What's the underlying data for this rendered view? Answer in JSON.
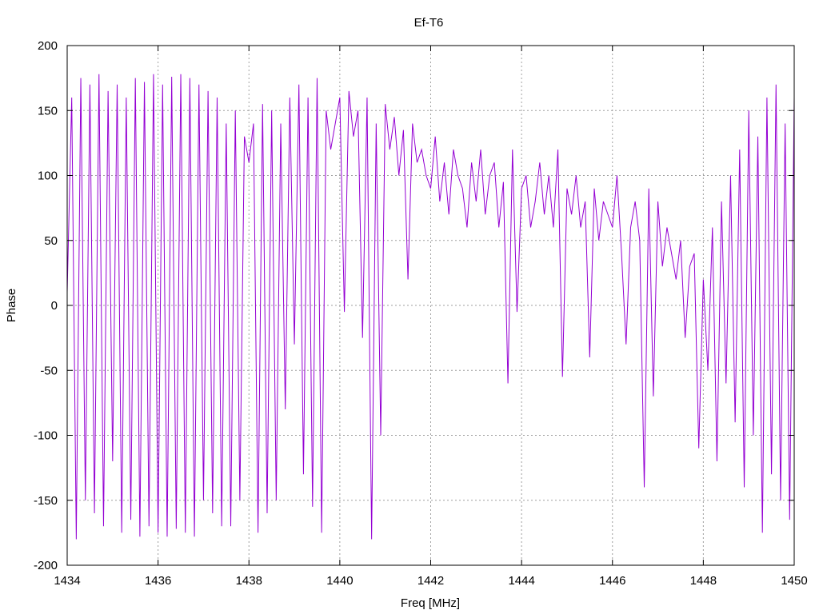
{
  "chart_data": {
    "type": "line",
    "title": "Ef-T6",
    "xlabel": "Freq [MHz]",
    "ylabel": "Phase",
    "xlim": [
      1434,
      1450
    ],
    "ylim": [
      -200,
      200
    ],
    "x_ticks": [
      1434,
      1436,
      1438,
      1440,
      1442,
      1444,
      1446,
      1448,
      1450
    ],
    "y_ticks": [
      -200,
      -150,
      -100,
      -50,
      0,
      50,
      100,
      150,
      200
    ],
    "grid": true,
    "legend": "none",
    "series": [
      {
        "color": "#9400d3",
        "x": [
          1434.0,
          1434.1,
          1434.2,
          1434.3,
          1434.4,
          1434.5,
          1434.6,
          1434.7,
          1434.8,
          1434.9,
          1435.0,
          1435.1,
          1435.2,
          1435.3,
          1435.4,
          1435.5,
          1435.6,
          1435.7,
          1435.8,
          1435.9,
          1436.0,
          1436.1,
          1436.2,
          1436.3,
          1436.4,
          1436.5,
          1436.6,
          1436.7,
          1436.8,
          1436.9,
          1437.0,
          1437.1,
          1437.2,
          1437.3,
          1437.4,
          1437.5,
          1437.6,
          1437.7,
          1437.8,
          1437.9,
          1438.0,
          1438.1,
          1438.2,
          1438.3,
          1438.4,
          1438.5,
          1438.6,
          1438.7,
          1438.8,
          1438.9,
          1439.0,
          1439.1,
          1439.2,
          1439.3,
          1439.4,
          1439.5,
          1439.6,
          1439.7,
          1439.8,
          1439.9,
          1440.0,
          1440.1,
          1440.2,
          1440.3,
          1440.4,
          1440.5,
          1440.6,
          1440.7,
          1440.8,
          1440.9,
          1441.0,
          1441.1,
          1441.2,
          1441.3,
          1441.4,
          1441.5,
          1441.6,
          1441.7,
          1441.8,
          1441.9,
          1442.0,
          1442.1,
          1442.2,
          1442.3,
          1442.4,
          1442.5,
          1442.6,
          1442.7,
          1442.8,
          1442.9,
          1443.0,
          1443.1,
          1443.2,
          1443.3,
          1443.4,
          1443.5,
          1443.6,
          1443.7,
          1443.8,
          1443.9,
          1444.0,
          1444.1,
          1444.2,
          1444.3,
          1444.4,
          1444.5,
          1444.6,
          1444.7,
          1444.8,
          1444.9,
          1445.0,
          1445.1,
          1445.2,
          1445.3,
          1445.4,
          1445.5,
          1445.6,
          1445.7,
          1445.8,
          1445.9,
          1446.0,
          1446.1,
          1446.2,
          1446.3,
          1446.4,
          1446.5,
          1446.6,
          1446.7,
          1446.8,
          1446.9,
          1447.0,
          1447.1,
          1447.2,
          1447.3,
          1447.4,
          1447.5,
          1447.6,
          1447.7,
          1447.8,
          1447.9,
          1448.0,
          1448.1,
          1448.2,
          1448.3,
          1448.4,
          1448.5,
          1448.6,
          1448.7,
          1448.8,
          1448.9,
          1449.0,
          1449.1,
          1449.2,
          1449.3,
          1449.4,
          1449.5,
          1449.6,
          1449.7,
          1449.8,
          1449.9,
          1450.0
        ],
        "y": [
          10,
          160,
          -180,
          175,
          -150,
          170,
          -160,
          178,
          -170,
          165,
          -120,
          170,
          -175,
          160,
          -165,
          175,
          -178,
          172,
          -170,
          178,
          -175,
          170,
          -178,
          176,
          -172,
          178,
          -175,
          175,
          -178,
          170,
          -150,
          165,
          -160,
          160,
          -170,
          140,
          -170,
          150,
          -150,
          130,
          110,
          140,
          -175,
          155,
          -160,
          150,
          -150,
          140,
          -80,
          160,
          -30,
          170,
          -130,
          160,
          -155,
          175,
          -175,
          150,
          120,
          140,
          160,
          -5,
          165,
          130,
          150,
          -25,
          160,
          -180,
          140,
          -100,
          155,
          120,
          145,
          100,
          135,
          20,
          140,
          110,
          120,
          100,
          90,
          130,
          80,
          110,
          70,
          120,
          100,
          90,
          60,
          110,
          80,
          120,
          70,
          100,
          110,
          60,
          95,
          -60,
          120,
          -5,
          90,
          100,
          60,
          80,
          110,
          70,
          100,
          60,
          120,
          -55,
          90,
          70,
          100,
          60,
          80,
          -40,
          90,
          50,
          80,
          70,
          60,
          100,
          40,
          -30,
          60,
          80,
          50,
          -140,
          90,
          -70,
          80,
          30,
          60,
          40,
          20,
          50,
          -25,
          30,
          40,
          -110,
          20,
          -50,
          60,
          -120,
          80,
          -60,
          100,
          -90,
          120,
          -140,
          150,
          -100,
          130,
          -175,
          160,
          -130,
          170,
          -150,
          140,
          -165,
          160
        ]
      }
    ]
  }
}
